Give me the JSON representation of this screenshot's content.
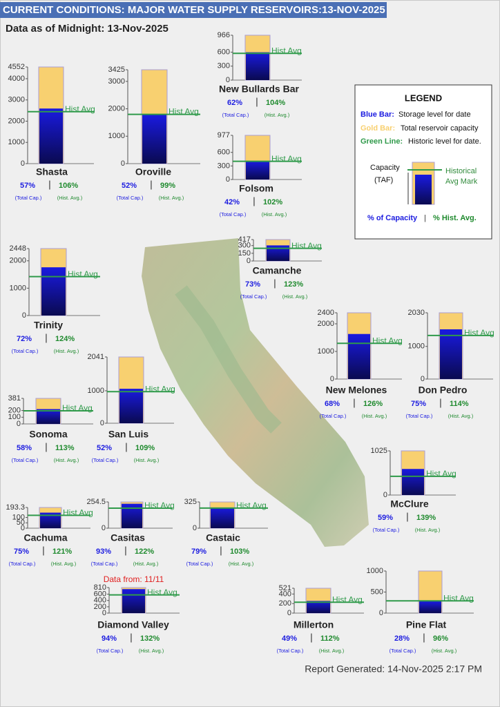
{
  "header": {
    "title": "CURRENT CONDITIONS: MAJOR WATER SUPPLY RESERVOIRS:13-NOV-2025",
    "subtitle": "Data as of Midnight: 13-Nov-2025",
    "footer": "Report Generated: 14-Nov-2025 2:17 PM"
  },
  "legend": {
    "title": "LEGEND",
    "items": [
      {
        "key": "Blue Bar:",
        "text": "Storage level for date",
        "color": "#1a1ae0"
      },
      {
        "key": "Gold Bar:",
        "text": "Total reservoir capacity",
        "color": "#f8d070"
      },
      {
        "key": "Green Line:",
        "text": "Historic level for date.",
        "color": "#2f9a4a"
      }
    ],
    "diagram": {
      "capacity_label": "Capacity",
      "unit_label": "(TAF)",
      "hist_label": [
        "Historical",
        "Avg Mark"
      ]
    },
    "pct_capacity": "% of Capacity",
    "separator": "|",
    "pct_hist": "% Hist. Avg."
  },
  "chart_data": [
    {
      "type": "reservoir",
      "title": "Shasta",
      "ylim": [
        0,
        4552
      ],
      "yticks": [
        0,
        1000,
        2000,
        3000,
        4000,
        4552
      ],
      "capacity": 4552,
      "storage": 2595,
      "hist_avg": 2448,
      "hist_label": "Hist Avg",
      "values": [
        57,
        106
      ],
      "value_labels": [
        "57%",
        "106%"
      ],
      "value_names": [
        "(Total Cap.)",
        "(Hist. Avg.)"
      ],
      "separator": "|"
    },
    {
      "type": "reservoir",
      "title": "Oroville",
      "ylim": [
        0,
        3425
      ],
      "yticks": [
        0,
        1000,
        2000,
        3000,
        3425
      ],
      "capacity": 3425,
      "storage": 1781,
      "hist_avg": 1799,
      "hist_label": "Hist Avg",
      "values": [
        52,
        99
      ],
      "value_labels": [
        "52%",
        "99%"
      ],
      "value_names": [
        "(Total Cap.)",
        "(Hist. Avg.)"
      ],
      "separator": "|"
    },
    {
      "type": "reservoir",
      "title": "New Bullards Bar",
      "ylim": [
        0,
        966
      ],
      "yticks": [
        0,
        300,
        600,
        966
      ],
      "capacity": 966,
      "storage": 599,
      "hist_avg": 576,
      "hist_label": "Hist Avg",
      "values": [
        62,
        104
      ],
      "value_labels": [
        "62%",
        "104%"
      ],
      "value_names": [
        "(Total Cap.)",
        "(Hist. Avg.)"
      ],
      "separator": "|"
    },
    {
      "type": "reservoir",
      "title": "Folsom",
      "ylim": [
        0,
        977
      ],
      "yticks": [
        0,
        300,
        600,
        977
      ],
      "capacity": 977,
      "storage": 410,
      "hist_avg": 402,
      "hist_label": "Hist Avg",
      "values": [
        42,
        102
      ],
      "value_labels": [
        "42%",
        "102%"
      ],
      "value_names": [
        "(Total Cap.)",
        "(Hist. Avg.)"
      ],
      "separator": "|"
    },
    {
      "type": "reservoir",
      "title": "Camanche",
      "ylim": [
        0,
        417
      ],
      "yticks": [
        0,
        150,
        300,
        417
      ],
      "capacity": 417,
      "storage": 304,
      "hist_avg": 247,
      "hist_label": "Hist Avg",
      "values": [
        73,
        123
      ],
      "value_labels": [
        "73%",
        "123%"
      ],
      "value_names": [
        "(Total Cap.)",
        "(Hist. Avg.)"
      ],
      "separator": "|"
    },
    {
      "type": "reservoir",
      "title": "Trinity",
      "ylim": [
        0,
        2448
      ],
      "yticks": [
        0,
        1000,
        2000,
        2448
      ],
      "capacity": 2448,
      "storage": 1763,
      "hist_avg": 1422,
      "hist_label": "Hist Avg",
      "values": [
        72,
        124
      ],
      "value_labels": [
        "72%",
        "124%"
      ],
      "value_names": [
        "(Total Cap.)",
        "(Hist. Avg.)"
      ],
      "separator": "|"
    },
    {
      "type": "reservoir",
      "title": "New Melones",
      "ylim": [
        0,
        2400
      ],
      "yticks": [
        0,
        1000,
        2000,
        2400
      ],
      "capacity": 2400,
      "storage": 1632,
      "hist_avg": 1295,
      "hist_label": "Hist Avg",
      "values": [
        68,
        126
      ],
      "value_labels": [
        "68%",
        "126%"
      ],
      "value_names": [
        "(Total Cap.)",
        "(Hist. Avg.)"
      ],
      "separator": "|"
    },
    {
      "type": "reservoir",
      "title": "Don Pedro",
      "ylim": [
        0,
        2030
      ],
      "yticks": [
        0,
        1000,
        2030
      ],
      "capacity": 2030,
      "storage": 1523,
      "hist_avg": 1336,
      "hist_label": "Hist Avg",
      "values": [
        75,
        114
      ],
      "value_labels": [
        "75%",
        "114%"
      ],
      "value_names": [
        "(Total Cap.)",
        "(Hist. Avg.)"
      ],
      "separator": "|"
    },
    {
      "type": "reservoir",
      "title": "San Luis",
      "ylim": [
        0,
        2041
      ],
      "yticks": [
        0,
        1000,
        2041
      ],
      "capacity": 2041,
      "storage": 1061,
      "hist_avg": 973,
      "hist_label": "Hist Avg",
      "values": [
        52,
        109
      ],
      "value_labels": [
        "52%",
        "109%"
      ],
      "value_names": [
        "(Total Cap.)",
        "(Hist. Avg.)"
      ],
      "separator": "|"
    },
    {
      "type": "reservoir",
      "title": "Sonoma",
      "ylim": [
        0,
        381
      ],
      "yticks": [
        0,
        100,
        200,
        381
      ],
      "capacity": 381,
      "storage": 221,
      "hist_avg": 196,
      "hist_label": "Hist Avg",
      "values": [
        58,
        113
      ],
      "value_labels": [
        "58%",
        "113%"
      ],
      "value_names": [
        "(Total Cap.)",
        "(Hist. Avg.)"
      ],
      "separator": "|"
    },
    {
      "type": "reservoir",
      "title": "McClure",
      "ylim": [
        0,
        1025
      ],
      "yticks": [
        0,
        1025
      ],
      "capacity": 1025,
      "storage": 605,
      "hist_avg": 435,
      "hist_label": "Hist Avg",
      "values": [
        59,
        139
      ],
      "value_labels": [
        "59%",
        "139%"
      ],
      "value_names": [
        "(Total Cap.)",
        "(Hist. Avg.)"
      ],
      "separator": "|"
    },
    {
      "type": "reservoir",
      "title": "Cachuma",
      "ylim": [
        0,
        193.3
      ],
      "yticks": [
        0,
        50,
        100,
        193.3
      ],
      "capacity": 193.3,
      "storage": 145,
      "hist_avg": 120,
      "hist_label": "Hist Avg",
      "values": [
        75,
        121
      ],
      "value_labels": [
        "75%",
        "121%"
      ],
      "value_names": [
        "(Total Cap.)",
        "(Hist. Avg.)"
      ],
      "separator": "|"
    },
    {
      "type": "reservoir",
      "title": "Casitas",
      "ylim": [
        0,
        254.5
      ],
      "yticks": [
        0,
        254.5
      ],
      "capacity": 254.5,
      "storage": 237,
      "hist_avg": 194,
      "hist_label": "Hist Avg",
      "values": [
        93,
        122
      ],
      "value_labels": [
        "93%",
        "122%"
      ],
      "value_names": [
        "(Total Cap.)",
        "(Hist. Avg.)"
      ],
      "separator": "|"
    },
    {
      "type": "reservoir",
      "title": "Castaic",
      "ylim": [
        0,
        325
      ],
      "yticks": [
        0,
        325
      ],
      "capacity": 325,
      "storage": 257,
      "hist_avg": 249,
      "hist_label": "Hist Avg",
      "values": [
        79,
        103
      ],
      "value_labels": [
        "79%",
        "103%"
      ],
      "value_names": [
        "(Total Cap.)",
        "(Hist. Avg.)"
      ],
      "separator": "|"
    },
    {
      "type": "reservoir",
      "title": "Diamond Valley",
      "annotation": "Data from: 11/11",
      "ylim": [
        0,
        810
      ],
      "yticks": [
        0,
        200,
        400,
        600,
        810
      ],
      "capacity": 810,
      "storage": 761,
      "hist_avg": 577,
      "hist_label": "Hist Avg",
      "values": [
        94,
        132
      ],
      "value_labels": [
        "94%",
        "132%"
      ],
      "value_names": [
        "(Total Cap.)",
        "(Hist. Avg.)"
      ],
      "separator": "|"
    },
    {
      "type": "reservoir",
      "title": "Millerton",
      "ylim": [
        0,
        521
      ],
      "yticks": [
        0,
        200,
        400,
        521
      ],
      "capacity": 521,
      "storage": 255,
      "hist_avg": 228,
      "hist_label": "Hist Avg",
      "values": [
        49,
        112
      ],
      "value_labels": [
        "49%",
        "112%"
      ],
      "value_names": [
        "(Total Cap.)",
        "(Hist. Avg.)"
      ],
      "separator": "|"
    },
    {
      "type": "reservoir",
      "title": "Pine Flat",
      "ylim": [
        0,
        1000
      ],
      "yticks": [
        0,
        500,
        1000
      ],
      "capacity": 1000,
      "storage": 280,
      "hist_avg": 292,
      "hist_label": "Hist Avg",
      "values": [
        28,
        96
      ],
      "value_labels": [
        "28%",
        "96%"
      ],
      "value_names": [
        "(Total Cap.)",
        "(Hist. Avg.)"
      ],
      "separator": "|"
    }
  ]
}
